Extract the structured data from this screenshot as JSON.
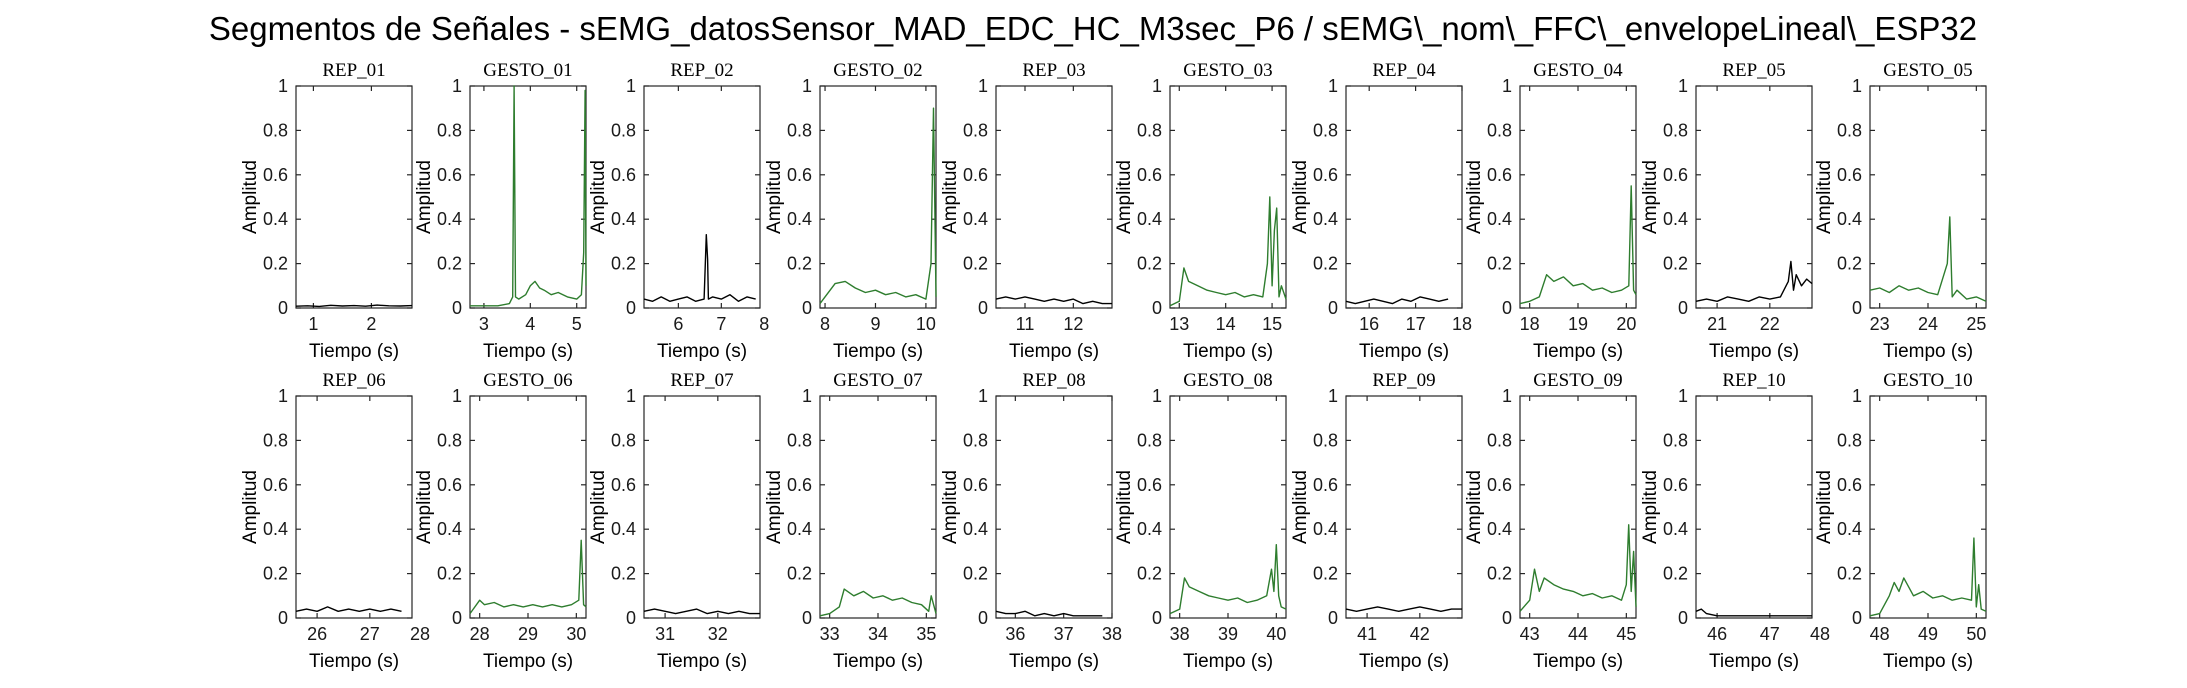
{
  "figure": {
    "title": "Segmentos de Señales - sEMG_datosSensor_MAD_EDC_HC_M3sec_P6 / sEMG\\_nom\\_FFC\\_envelopeLineal\\_ESP32"
  },
  "colors": {
    "rep": "#000000",
    "gesto": "#2e7d2e",
    "axis": "#262626"
  },
  "chart_data": [
    {
      "type": "line",
      "title": "REP_01",
      "kind": "rep",
      "xlabel": "Tiempo (s)",
      "ylabel": "Amplitud",
      "xlim": [
        0.7,
        2.7
      ],
      "xticks": [
        1,
        2
      ],
      "ylim": [
        0,
        1
      ],
      "yticks": [
        0,
        0.2,
        0.4,
        0.6,
        0.8,
        1
      ],
      "grid": false,
      "x": [
        0.7,
        0.9,
        1.1,
        1.3,
        1.5,
        1.7,
        1.9,
        2.1,
        2.3,
        2.5,
        2.7
      ],
      "y": [
        0.008,
        0.01,
        0.007,
        0.012,
        0.009,
        0.011,
        0.008,
        0.013,
        0.01,
        0.009,
        0.011
      ]
    },
    {
      "type": "line",
      "title": "GESTO_01",
      "kind": "gesto",
      "xlabel": "Tiempo (s)",
      "ylabel": "Amplitud",
      "xlim": [
        2.7,
        5.2
      ],
      "xticks": [
        3,
        4,
        5
      ],
      "ylim": [
        0,
        1
      ],
      "yticks": [
        0,
        0.2,
        0.4,
        0.6,
        0.8,
        1
      ],
      "grid": false,
      "x": [
        2.7,
        3.0,
        3.3,
        3.55,
        3.62,
        3.65,
        3.68,
        3.75,
        3.9,
        4.0,
        4.1,
        4.2,
        4.3,
        4.45,
        4.6,
        4.8,
        5.0,
        5.1,
        5.15,
        5.18,
        5.2
      ],
      "y": [
        0.01,
        0.01,
        0.01,
        0.02,
        0.05,
        1.0,
        0.05,
        0.04,
        0.06,
        0.1,
        0.12,
        0.09,
        0.08,
        0.06,
        0.07,
        0.05,
        0.04,
        0.06,
        0.25,
        0.98,
        0.1
      ]
    },
    {
      "type": "line",
      "title": "REP_02",
      "kind": "rep",
      "xlabel": "Tiempo (s)",
      "ylabel": "Amplitud",
      "xlim": [
        5.2,
        7.9
      ],
      "xticks": [
        6,
        7,
        8
      ],
      "ylim": [
        0,
        1
      ],
      "yticks": [
        0,
        0.2,
        0.4,
        0.6,
        0.8,
        1
      ],
      "grid": false,
      "x": [
        5.2,
        5.4,
        5.6,
        5.8,
        6.0,
        6.2,
        6.4,
        6.6,
        6.65,
        6.68,
        6.7,
        6.8,
        7.0,
        7.2,
        7.4,
        7.6,
        7.8
      ],
      "y": [
        0.04,
        0.03,
        0.05,
        0.03,
        0.04,
        0.05,
        0.03,
        0.04,
        0.33,
        0.22,
        0.04,
        0.05,
        0.04,
        0.06,
        0.03,
        0.05,
        0.04
      ]
    },
    {
      "type": "line",
      "title": "GESTO_02",
      "kind": "gesto",
      "xlabel": "Tiempo (s)",
      "ylabel": "Amplitud",
      "xlim": [
        7.9,
        10.2
      ],
      "xticks": [
        8,
        9,
        10
      ],
      "ylim": [
        0,
        1
      ],
      "yticks": [
        0,
        0.2,
        0.4,
        0.6,
        0.8,
        1
      ],
      "grid": false,
      "x": [
        7.9,
        8.0,
        8.1,
        8.2,
        8.4,
        8.6,
        8.8,
        9.0,
        9.2,
        9.4,
        9.6,
        9.8,
        10.0,
        10.1,
        10.15,
        10.2
      ],
      "y": [
        0.02,
        0.05,
        0.08,
        0.11,
        0.12,
        0.09,
        0.07,
        0.08,
        0.06,
        0.07,
        0.05,
        0.06,
        0.04,
        0.2,
        0.9,
        0.05
      ]
    },
    {
      "type": "line",
      "title": "REP_03",
      "kind": "rep",
      "xlabel": "Tiempo (s)",
      "ylabel": "Amplitud",
      "xlim": [
        10.4,
        12.8
      ],
      "xticks": [
        11,
        12
      ],
      "ylim": [
        0,
        1
      ],
      "yticks": [
        0,
        0.2,
        0.4,
        0.6,
        0.8,
        1
      ],
      "grid": false,
      "x": [
        10.4,
        10.6,
        10.8,
        11.0,
        11.2,
        11.4,
        11.6,
        11.8,
        12.0,
        12.2,
        12.4,
        12.6,
        12.8
      ],
      "y": [
        0.04,
        0.05,
        0.04,
        0.05,
        0.04,
        0.03,
        0.04,
        0.03,
        0.04,
        0.02,
        0.03,
        0.02,
        0.02
      ]
    },
    {
      "type": "line",
      "title": "GESTO_03",
      "kind": "gesto",
      "xlabel": "Tiempo (s)",
      "ylabel": "Amplitud",
      "xlim": [
        12.8,
        15.3
      ],
      "xticks": [
        13,
        14,
        15
      ],
      "ylim": [
        0,
        1
      ],
      "yticks": [
        0,
        0.2,
        0.4,
        0.6,
        0.8,
        1
      ],
      "grid": false,
      "x": [
        12.8,
        13.0,
        13.1,
        13.2,
        13.4,
        13.6,
        13.8,
        14.0,
        14.2,
        14.4,
        14.6,
        14.8,
        14.9,
        14.95,
        15.0,
        15.05,
        15.1,
        15.15,
        15.2,
        15.3
      ],
      "y": [
        0.01,
        0.03,
        0.18,
        0.12,
        0.1,
        0.08,
        0.07,
        0.06,
        0.07,
        0.05,
        0.06,
        0.05,
        0.2,
        0.5,
        0.1,
        0.35,
        0.45,
        0.05,
        0.1,
        0.04
      ]
    },
    {
      "type": "line",
      "title": "REP_04",
      "kind": "rep",
      "xlabel": "Tiempo (s)",
      "ylabel": "Amplitud",
      "xlim": [
        15.5,
        18.0
      ],
      "xticks": [
        16,
        17,
        18
      ],
      "ylim": [
        0,
        1
      ],
      "yticks": [
        0,
        0.2,
        0.4,
        0.6,
        0.8,
        1
      ],
      "grid": false,
      "x": [
        15.5,
        15.7,
        15.9,
        16.1,
        16.3,
        16.5,
        16.7,
        16.9,
        17.1,
        17.3,
        17.5,
        17.7
      ],
      "y": [
        0.03,
        0.02,
        0.03,
        0.04,
        0.03,
        0.02,
        0.04,
        0.03,
        0.05,
        0.04,
        0.03,
        0.04
      ]
    },
    {
      "type": "line",
      "title": "GESTO_04",
      "kind": "gesto",
      "xlabel": "Tiempo (s)",
      "ylabel": "Amplitud",
      "xlim": [
        17.8,
        20.2
      ],
      "xticks": [
        18,
        19,
        20
      ],
      "ylim": [
        0,
        1
      ],
      "yticks": [
        0,
        0.2,
        0.4,
        0.6,
        0.8,
        1
      ],
      "grid": false,
      "x": [
        17.8,
        18.0,
        18.2,
        18.35,
        18.5,
        18.7,
        18.9,
        19.1,
        19.3,
        19.5,
        19.7,
        19.9,
        20.05,
        20.1,
        20.15,
        20.2
      ],
      "y": [
        0.02,
        0.03,
        0.05,
        0.15,
        0.12,
        0.14,
        0.1,
        0.11,
        0.08,
        0.09,
        0.07,
        0.08,
        0.1,
        0.55,
        0.08,
        0.06
      ]
    },
    {
      "type": "line",
      "title": "REP_05",
      "kind": "rep",
      "xlabel": "Tiempo (s)",
      "ylabel": "Amplitud",
      "xlim": [
        20.6,
        22.8
      ],
      "xticks": [
        21,
        22
      ],
      "ylim": [
        0,
        1
      ],
      "yticks": [
        0,
        0.2,
        0.4,
        0.6,
        0.8,
        1
      ],
      "grid": false,
      "x": [
        20.6,
        20.8,
        21.0,
        21.2,
        21.4,
        21.6,
        21.8,
        22.0,
        22.2,
        22.35,
        22.4,
        22.45,
        22.5,
        22.6,
        22.7,
        22.8
      ],
      "y": [
        0.03,
        0.04,
        0.03,
        0.05,
        0.04,
        0.03,
        0.05,
        0.04,
        0.05,
        0.12,
        0.21,
        0.08,
        0.15,
        0.1,
        0.13,
        0.11
      ]
    },
    {
      "type": "line",
      "title": "GESTO_05",
      "kind": "gesto",
      "xlabel": "Tiempo (s)",
      "ylabel": "Amplitud",
      "xlim": [
        22.8,
        25.2
      ],
      "xticks": [
        23,
        24,
        25
      ],
      "ylim": [
        0,
        1
      ],
      "yticks": [
        0,
        0.2,
        0.4,
        0.6,
        0.8,
        1
      ],
      "grid": false,
      "x": [
        22.8,
        23.0,
        23.2,
        23.4,
        23.6,
        23.8,
        24.0,
        24.2,
        24.4,
        24.45,
        24.5,
        24.6,
        24.8,
        25.0,
        25.2
      ],
      "y": [
        0.08,
        0.09,
        0.07,
        0.1,
        0.08,
        0.09,
        0.07,
        0.06,
        0.2,
        0.41,
        0.05,
        0.08,
        0.04,
        0.05,
        0.03
      ]
    },
    {
      "type": "line",
      "title": "REP_06",
      "kind": "rep",
      "xlabel": "Tiempo (s)",
      "ylabel": "Amplitud",
      "xlim": [
        25.6,
        27.8
      ],
      "xticks": [
        26,
        27,
        28
      ],
      "ylim": [
        0,
        1
      ],
      "yticks": [
        0,
        0.2,
        0.4,
        0.6,
        0.8,
        1
      ],
      "grid": false,
      "x": [
        25.6,
        25.8,
        26.0,
        26.2,
        26.4,
        26.6,
        26.8,
        27.0,
        27.2,
        27.4,
        27.6
      ],
      "y": [
        0.03,
        0.04,
        0.03,
        0.05,
        0.03,
        0.04,
        0.03,
        0.04,
        0.03,
        0.04,
        0.03
      ]
    },
    {
      "type": "line",
      "title": "GESTO_06",
      "kind": "gesto",
      "xlabel": "Tiempo (s)",
      "ylabel": "Amplitud",
      "xlim": [
        27.8,
        30.2
      ],
      "xticks": [
        28,
        29,
        30
      ],
      "ylim": [
        0,
        1
      ],
      "yticks": [
        0,
        0.2,
        0.4,
        0.6,
        0.8,
        1
      ],
      "grid": false,
      "x": [
        27.8,
        28.0,
        28.1,
        28.3,
        28.5,
        28.7,
        28.9,
        29.1,
        29.3,
        29.5,
        29.7,
        29.9,
        30.05,
        30.1,
        30.15,
        30.2
      ],
      "y": [
        0.02,
        0.08,
        0.06,
        0.07,
        0.05,
        0.06,
        0.05,
        0.06,
        0.05,
        0.06,
        0.05,
        0.06,
        0.08,
        0.35,
        0.06,
        0.05
      ]
    },
    {
      "type": "line",
      "title": "REP_07",
      "kind": "rep",
      "xlabel": "Tiempo (s)",
      "ylabel": "Amplitud",
      "xlim": [
        30.6,
        32.8
      ],
      "xticks": [
        31,
        32
      ],
      "ylim": [
        0,
        1
      ],
      "yticks": [
        0,
        0.2,
        0.4,
        0.6,
        0.8,
        1
      ],
      "grid": false,
      "x": [
        30.6,
        30.8,
        31.0,
        31.2,
        31.4,
        31.6,
        31.8,
        32.0,
        32.2,
        32.4,
        32.6,
        32.8
      ],
      "y": [
        0.03,
        0.04,
        0.03,
        0.02,
        0.03,
        0.04,
        0.02,
        0.03,
        0.02,
        0.03,
        0.02,
        0.02
      ]
    },
    {
      "type": "line",
      "title": "GESTO_07",
      "kind": "gesto",
      "xlabel": "Tiempo (s)",
      "ylabel": "Amplitud",
      "xlim": [
        32.8,
        35.2
      ],
      "xticks": [
        33,
        34,
        35
      ],
      "ylim": [
        0,
        1
      ],
      "yticks": [
        0,
        0.2,
        0.4,
        0.6,
        0.8,
        1
      ],
      "grid": false,
      "x": [
        32.8,
        33.0,
        33.2,
        33.3,
        33.5,
        33.7,
        33.9,
        34.1,
        34.3,
        34.5,
        34.7,
        34.9,
        35.05,
        35.1,
        35.2
      ],
      "y": [
        0.01,
        0.02,
        0.05,
        0.13,
        0.1,
        0.12,
        0.09,
        0.1,
        0.08,
        0.09,
        0.07,
        0.06,
        0.03,
        0.1,
        0.02
      ]
    },
    {
      "type": "line",
      "title": "REP_08",
      "kind": "rep",
      "xlabel": "Tiempo (s)",
      "ylabel": "Amplitud",
      "xlim": [
        35.6,
        38.0
      ],
      "xticks": [
        36,
        37,
        38
      ],
      "ylim": [
        0,
        1
      ],
      "yticks": [
        0,
        0.2,
        0.4,
        0.6,
        0.8,
        1
      ],
      "grid": false,
      "x": [
        35.6,
        35.8,
        36.0,
        36.2,
        36.4,
        36.6,
        36.8,
        37.0,
        37.2,
        37.4,
        37.6,
        37.8
      ],
      "y": [
        0.03,
        0.02,
        0.02,
        0.03,
        0.01,
        0.02,
        0.01,
        0.02,
        0.01,
        0.01,
        0.01,
        0.01
      ]
    },
    {
      "type": "line",
      "title": "GESTO_08",
      "kind": "gesto",
      "xlabel": "Tiempo (s)",
      "ylabel": "Amplitud",
      "xlim": [
        37.8,
        40.2
      ],
      "xticks": [
        38,
        39,
        40
      ],
      "ylim": [
        0,
        1
      ],
      "yticks": [
        0,
        0.2,
        0.4,
        0.6,
        0.8,
        1
      ],
      "grid": false,
      "x": [
        37.8,
        38.0,
        38.1,
        38.2,
        38.4,
        38.6,
        38.8,
        39.0,
        39.2,
        39.4,
        39.6,
        39.8,
        39.9,
        39.95,
        40.0,
        40.05,
        40.1,
        40.2
      ],
      "y": [
        0.02,
        0.04,
        0.18,
        0.14,
        0.12,
        0.1,
        0.09,
        0.08,
        0.09,
        0.07,
        0.08,
        0.1,
        0.22,
        0.12,
        0.33,
        0.1,
        0.05,
        0.04
      ]
    },
    {
      "type": "line",
      "title": "REP_09",
      "kind": "rep",
      "xlabel": "Tiempo (s)",
      "ylabel": "Amplitud",
      "xlim": [
        40.6,
        42.8
      ],
      "xticks": [
        41,
        42
      ],
      "ylim": [
        0,
        1
      ],
      "yticks": [
        0,
        0.2,
        0.4,
        0.6,
        0.8,
        1
      ],
      "grid": false,
      "x": [
        40.6,
        40.8,
        41.0,
        41.2,
        41.4,
        41.6,
        41.8,
        42.0,
        42.2,
        42.4,
        42.6,
        42.8
      ],
      "y": [
        0.04,
        0.03,
        0.04,
        0.05,
        0.04,
        0.03,
        0.04,
        0.05,
        0.04,
        0.03,
        0.04,
        0.04
      ]
    },
    {
      "type": "line",
      "title": "GESTO_09",
      "kind": "gesto",
      "xlabel": "Tiempo (s)",
      "ylabel": "Amplitud",
      "xlim": [
        42.8,
        45.2
      ],
      "xticks": [
        43,
        44,
        45
      ],
      "ylim": [
        0,
        1
      ],
      "yticks": [
        0,
        0.2,
        0.4,
        0.6,
        0.8,
        1
      ],
      "grid": false,
      "x": [
        42.8,
        43.0,
        43.1,
        43.2,
        43.3,
        43.5,
        43.7,
        43.9,
        44.1,
        44.3,
        44.5,
        44.7,
        44.9,
        45.0,
        45.05,
        45.1,
        45.15,
        45.2
      ],
      "y": [
        0.03,
        0.08,
        0.22,
        0.12,
        0.18,
        0.15,
        0.13,
        0.12,
        0.1,
        0.11,
        0.09,
        0.1,
        0.08,
        0.15,
        0.42,
        0.12,
        0.3,
        0.05
      ]
    },
    {
      "type": "line",
      "title": "REP_10",
      "kind": "rep",
      "xlabel": "Tiempo (s)",
      "ylabel": "Amplitud",
      "xlim": [
        45.6,
        47.8
      ],
      "xticks": [
        46,
        47,
        48
      ],
      "ylim": [
        0,
        1
      ],
      "yticks": [
        0,
        0.2,
        0.4,
        0.6,
        0.8,
        1
      ],
      "grid": false,
      "x": [
        45.6,
        45.7,
        45.8,
        46.0,
        46.2,
        46.4,
        46.6,
        46.8,
        47.0,
        47.2,
        47.4,
        47.6,
        47.8
      ],
      "y": [
        0.03,
        0.04,
        0.02,
        0.01,
        0.01,
        0.01,
        0.01,
        0.01,
        0.01,
        0.01,
        0.01,
        0.01,
        0.01
      ]
    },
    {
      "type": "line",
      "title": "GESTO_10",
      "kind": "gesto",
      "xlabel": "Tiempo (s)",
      "ylabel": "Amplitud",
      "xlim": [
        47.8,
        50.2
      ],
      "xticks": [
        48,
        49,
        50
      ],
      "ylim": [
        0,
        1
      ],
      "yticks": [
        0,
        0.2,
        0.4,
        0.6,
        0.8,
        1
      ],
      "grid": false,
      "x": [
        47.8,
        48.0,
        48.2,
        48.3,
        48.4,
        48.5,
        48.7,
        48.9,
        49.1,
        49.3,
        49.5,
        49.7,
        49.9,
        49.95,
        50.0,
        50.05,
        50.1,
        50.2
      ],
      "y": [
        0.01,
        0.02,
        0.1,
        0.16,
        0.12,
        0.18,
        0.1,
        0.12,
        0.09,
        0.1,
        0.08,
        0.09,
        0.08,
        0.36,
        0.05,
        0.15,
        0.04,
        0.03
      ]
    }
  ]
}
